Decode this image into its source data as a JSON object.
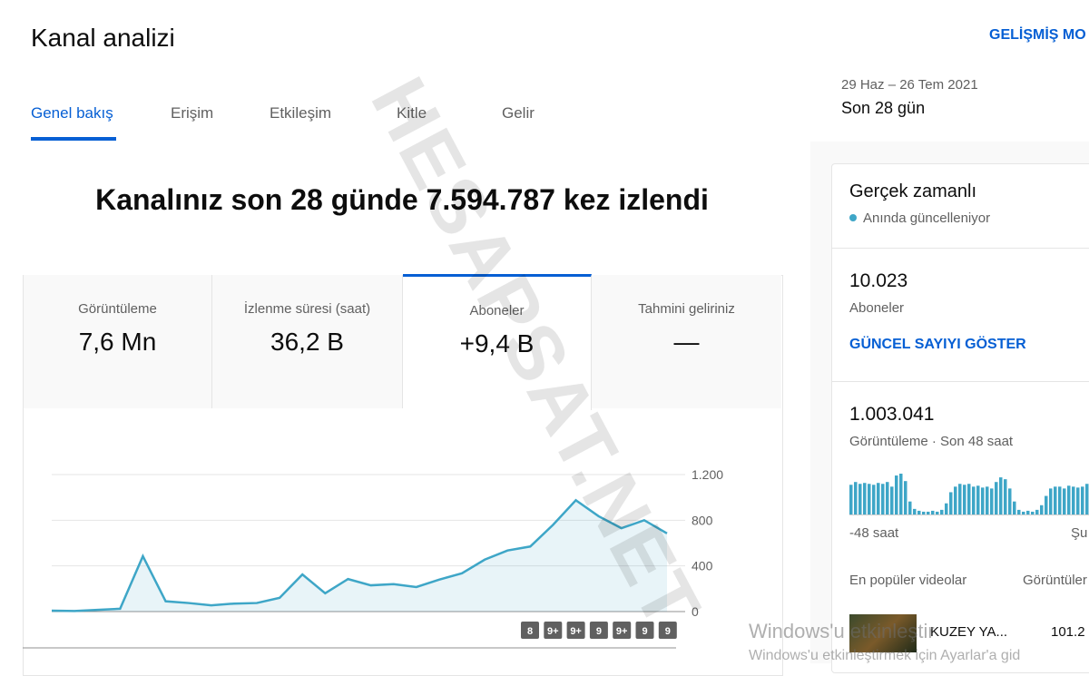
{
  "header": {
    "title": "Kanal analizi",
    "advanced_mode": "GELİŞMİŞ MO"
  },
  "tabs": [
    "Genel bakış",
    "Erişim",
    "Etkileşim",
    "Kitle",
    "Gelir"
  ],
  "date_range": {
    "dates": "29 Haz – 26 Tem 2021",
    "label": "Son 28 gün"
  },
  "headline": "Kanalınız son 28 günde 7.594.787 kez izlendi",
  "metrics": [
    {
      "label": "Görüntüleme",
      "value": "7,6 Mn"
    },
    {
      "label": "İzlenme süresi (saat)",
      "value": "36,2 B"
    },
    {
      "label": "Aboneler",
      "value": "+9,4 B"
    },
    {
      "label": "Tahmini geliriniz",
      "value": "—"
    }
  ],
  "chart_data": {
    "type": "area",
    "values": [
      8,
      5,
      15,
      25,
      485,
      90,
      75,
      55,
      70,
      75,
      120,
      325,
      160,
      285,
      230,
      240,
      215,
      280,
      335,
      455,
      535,
      570,
      760,
      975,
      835,
      730,
      800,
      685
    ],
    "ylim": [
      0,
      1200
    ],
    "yticks": [
      0,
      400,
      800,
      {
        "value": 1200,
        "label": "1.200"
      }
    ],
    "color": "#3ea6c7",
    "grid": true,
    "badges": [
      "8",
      "9+",
      "9+",
      "9",
      "9+",
      "9",
      "9"
    ]
  },
  "realtime": {
    "title": "Gerçek zamanlı",
    "status": "Anında güncelleniyor",
    "subscribers": "10.023",
    "subscribers_label": "Aboneler",
    "show_count": "GÜNCEL SAYIYI GÖSTER",
    "views": "1.003.041",
    "views_label": "Görüntüleme · Son 48 saat",
    "bars": {
      "type": "bar",
      "color": "#3ea6c7",
      "values": [
        32,
        35,
        33,
        34,
        33,
        32,
        34,
        33,
        35,
        30,
        42,
        44,
        36,
        14,
        6,
        4,
        3,
        3,
        4,
        3,
        5,
        12,
        24,
        30,
        33,
        32,
        33,
        30,
        31,
        29,
        30,
        28,
        35,
        40,
        38,
        28,
        14,
        5,
        3,
        4,
        3,
        5,
        10,
        20,
        28,
        30,
        30,
        28,
        31,
        30,
        29,
        30,
        33,
        34
      ]
    },
    "axis_start": "-48 saat",
    "axis_end": "Şu",
    "top_videos": "En popüler videolar",
    "views_col": "Görüntüler",
    "video": {
      "title": "KUZEY YA...",
      "views": "101.2"
    }
  },
  "watermark": "HESAPSAT.NET",
  "os_notice": {
    "title": "Windows'u etkinleştir",
    "text": "Windows'u etkinleştirmek için Ayarlar'a gid"
  }
}
